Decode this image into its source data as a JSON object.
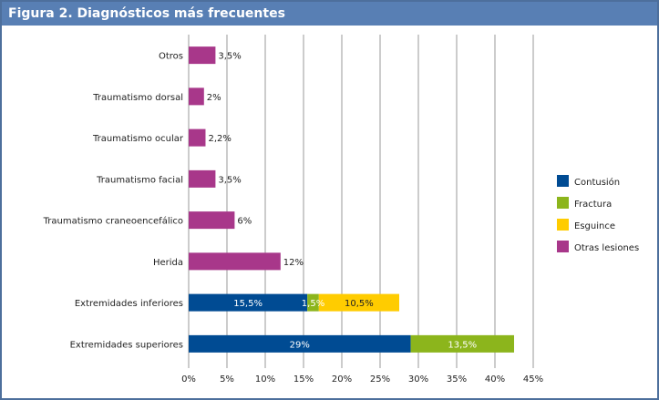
{
  "chart_data": {
    "type": "bar",
    "orientation": "horizontal",
    "stacked": true,
    "title": "Figura 2. Diagnósticos más frecuentes",
    "categories": [
      "Otros",
      "Traumatismo dorsal",
      "Traumatismo ocular",
      "Traumatismo facial",
      "Traumatismo craneoencefálico",
      "Herida",
      "Extremidades inferiores",
      "Extremidades superiores"
    ],
    "series": [
      {
        "name": "Contusión",
        "color": "#004b93",
        "values": [
          0,
          0,
          0,
          0,
          0,
          0,
          15.5,
          29
        ],
        "labels": [
          "",
          "",
          "",
          "",
          "",
          "",
          "15,5%",
          "29%"
        ]
      },
      {
        "name": "Fractura",
        "color": "#8cb51c",
        "values": [
          0,
          0,
          0,
          0,
          0,
          0,
          1.5,
          13.5
        ],
        "labels": [
          "",
          "",
          "",
          "",
          "",
          "",
          "1,5%",
          "13,5%"
        ]
      },
      {
        "name": "Esguince",
        "color": "#ffcc00",
        "values": [
          0,
          0,
          0,
          0,
          0,
          0,
          10.5,
          0
        ],
        "labels": [
          "",
          "",
          "",
          "",
          "",
          "",
          "10,5%",
          ""
        ]
      },
      {
        "name": "Otras lesiones",
        "color": "#a8378a",
        "values": [
          3.5,
          2,
          2.2,
          3.5,
          6,
          12,
          0,
          0
        ],
        "labels": [
          "3,5%",
          "2%",
          "2,2%",
          "3,5%",
          "6%",
          "12%",
          "",
          ""
        ]
      }
    ],
    "xlim": [
      0,
      45
    ],
    "xticks": [
      0,
      5,
      10,
      15,
      20,
      25,
      30,
      35,
      40,
      45
    ],
    "xtick_labels": [
      "0%",
      "5%",
      "10%",
      "15%",
      "20%",
      "25%",
      "30%",
      "35%",
      "40%",
      "45%"
    ],
    "xlabel": "",
    "ylabel": "",
    "grid": true,
    "legend_position": "right"
  }
}
